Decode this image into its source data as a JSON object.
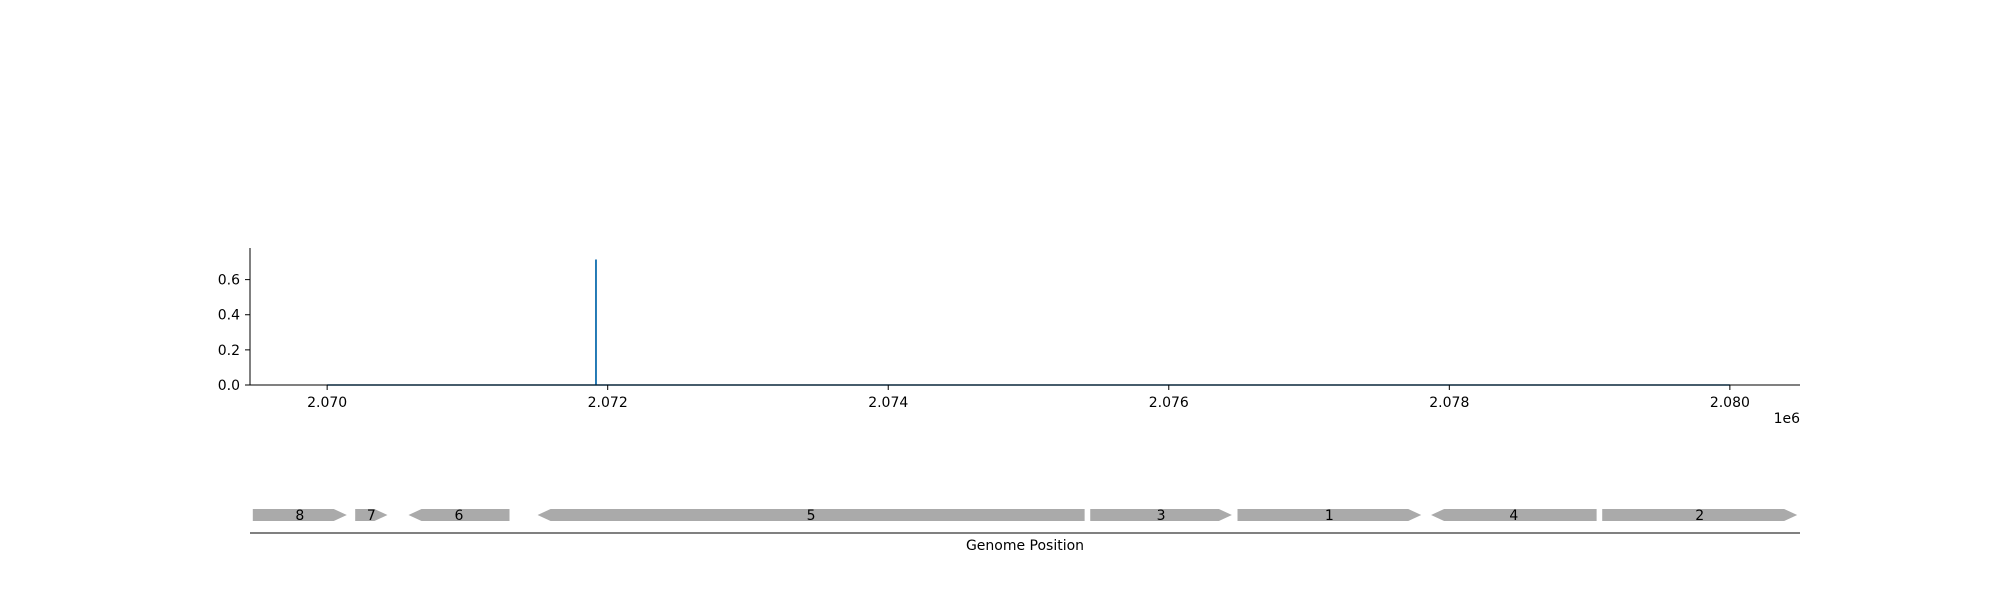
{
  "chart_data": [
    {
      "type": "line",
      "title": "",
      "xlabel": "",
      "ylabel": "",
      "x_offset_label": "1e6",
      "xlim": [
        2069450,
        2080500
      ],
      "ylim": [
        0,
        0.78
      ],
      "x_ticks": [
        2070000,
        2072000,
        2074000,
        2076000,
        2078000,
        2080000
      ],
      "x_tick_labels": [
        "2.070",
        "2.072",
        "2.074",
        "2.076",
        "2.078",
        "2.080"
      ],
      "y_ticks": [
        0.0,
        0.2,
        0.4,
        0.6
      ],
      "y_tick_labels": [
        "0.0",
        "0.2",
        "0.4",
        "0.6"
      ],
      "grid": false,
      "series": [
        {
          "color": "#1f77b4",
          "points": [
            [
              2070000,
              0.0
            ],
            [
              2071915,
              0.0
            ],
            [
              2071915,
              0.71
            ],
            [
              2071918,
              0.71
            ],
            [
              2071918,
              0.0
            ],
            [
              2080000,
              0.0
            ]
          ]
        }
      ]
    },
    {
      "type": "gene_map",
      "xlabel": "Genome Position",
      "xlim": [
        2069450,
        2080500
      ],
      "color": "#aaaaaa",
      "genes": [
        {
          "label": "8",
          "start": 2069470,
          "end": 2070140,
          "strand": "+"
        },
        {
          "label": "7",
          "start": 2070200,
          "end": 2070430,
          "strand": "+"
        },
        {
          "label": "6",
          "start": 2070580,
          "end": 2071300,
          "strand": "-"
        },
        {
          "label": "5",
          "start": 2071500,
          "end": 2075400,
          "strand": "-"
        },
        {
          "label": "3",
          "start": 2075440,
          "end": 2076450,
          "strand": "+"
        },
        {
          "label": "1",
          "start": 2076490,
          "end": 2077800,
          "strand": "+"
        },
        {
          "label": "4",
          "start": 2077870,
          "end": 2079050,
          "strand": "-"
        },
        {
          "label": "2",
          "start": 2079090,
          "end": 2080480,
          "strand": "+"
        }
      ]
    }
  ]
}
